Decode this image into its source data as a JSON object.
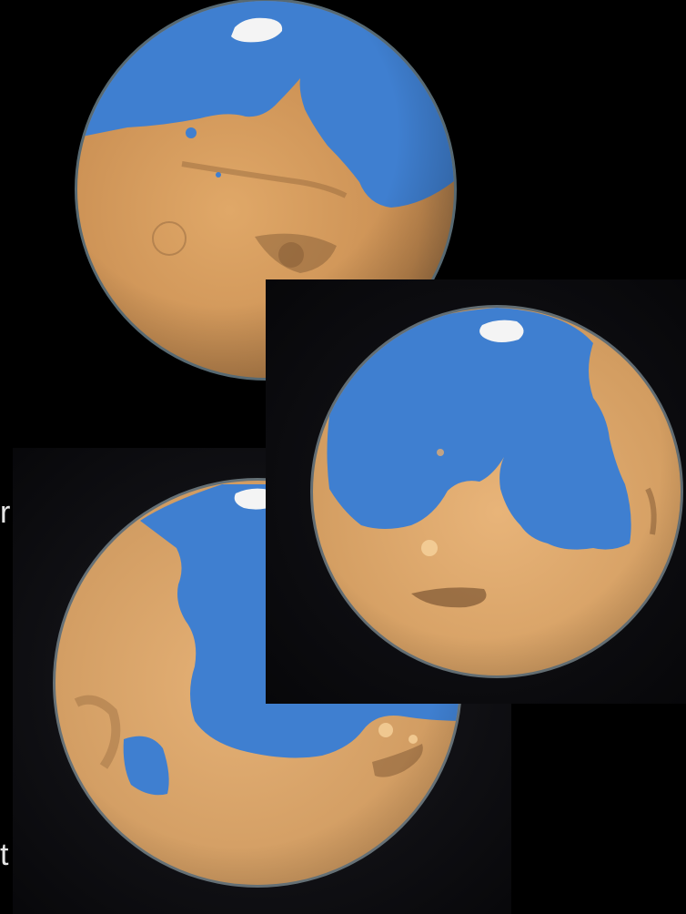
{
  "fragments": {
    "left_edge_line_1": "r",
    "left_edge_line_2": "t"
  },
  "colors": {
    "space": "#000000",
    "ocean": "#3f7fd0",
    "land": "#d59a5c",
    "land_shadow": "#8a5e36",
    "ice": "#f2f2f2",
    "atmosphere": "#a9c7d6"
  }
}
